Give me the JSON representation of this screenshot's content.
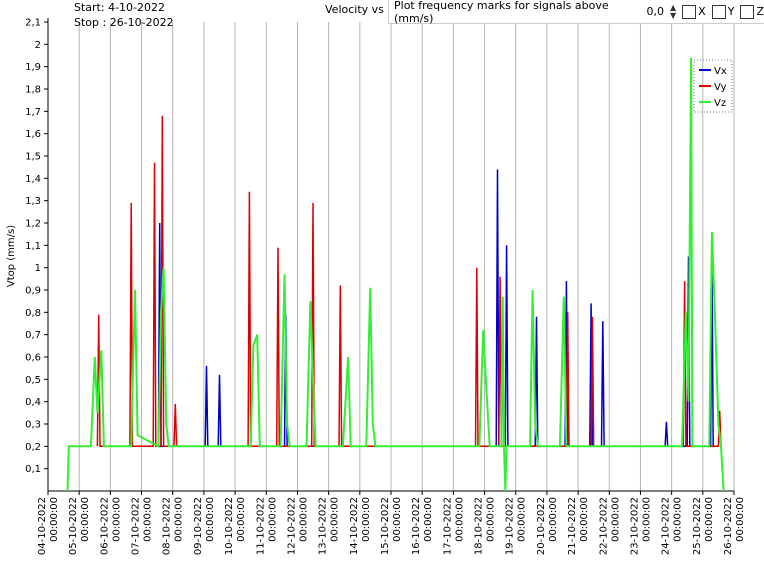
{
  "header": {
    "start": "Start: 4-10-2022",
    "stop": "Stop : 26-10-2022"
  },
  "controls": {
    "label": "Plot frequency marks for signals above (mm/s)",
    "value": "0,0",
    "checkboxes": [
      "X",
      "Y",
      "Z"
    ]
  },
  "chart_data": {
    "type": "line",
    "title": "Velocity vs",
    "y_label": "Vtop (mm/s)",
    "grid": "x",
    "legend": "top-right",
    "xlim": [
      "04-10-2022 00:00:00",
      "26-10-2022 00:00:00"
    ],
    "xticks": [
      "04-10-2022 00:00:00",
      "05-10-2022 00:00:00",
      "06-10-2022 00:00:00",
      "07-10-2022 00:00:00",
      "08-10-2022 00:00:00",
      "09-10-2022 00:00:00",
      "10-10-2022 00:00:00",
      "11-10-2022 00:00:00",
      "12-10-2022 00:00:00",
      "13-10-2022 00:00:00",
      "14-10-2022 00:00:00",
      "15-10-2022 00:00:00",
      "16-10-2022 00:00:00",
      "17-10-2022 00:00:00",
      "18-10-2022 00:00:00",
      "19-10-2022 00:00:00",
      "20-10-2022 00:00:00",
      "21-10-2022 00:00:00",
      "22-10-2022 00:00:00",
      "23-10-2022 00:00:00",
      "24-10-2022 00:00:00",
      "25-10-2022 00:00:00",
      "26-10-2022 00:00:00"
    ],
    "ylim": [
      0,
      2.1
    ],
    "yticks": [
      {
        "value": 0.1,
        "label": "0,1"
      },
      {
        "value": 0.2,
        "label": "0,2"
      },
      {
        "value": 0.3,
        "label": "0,3"
      },
      {
        "value": 0.4,
        "label": "0,4"
      },
      {
        "value": 0.5,
        "label": "0,5"
      },
      {
        "value": 0.6,
        "label": "0,6"
      },
      {
        "value": 0.7,
        "label": "0,7"
      },
      {
        "value": 0.8,
        "label": "0,8"
      },
      {
        "value": 0.9,
        "label": "0,9"
      },
      {
        "value": 1,
        "label": "1"
      },
      {
        "value": 1.1,
        "label": "1,1"
      },
      {
        "value": 1.2,
        "label": "1,2"
      },
      {
        "value": 1.3,
        "label": "1,3"
      },
      {
        "value": 1.4,
        "label": "1,4"
      },
      {
        "value": 1.5,
        "label": "1,5"
      },
      {
        "value": 1.6,
        "label": "1,6"
      },
      {
        "value": 1.7,
        "label": "1,7"
      },
      {
        "value": 1.8,
        "label": "1,8"
      },
      {
        "value": 1.9,
        "label": "1,9"
      },
      {
        "value": 2,
        "label": "2"
      },
      {
        "value": 2.1,
        "label": "2,1"
      }
    ],
    "series": [
      {
        "name": "Vx",
        "color": "#0000cc",
        "x": [
          "07-10-2022 13:00:00",
          "07-10-2022 14:00:00",
          "07-10-2022 15:00:00",
          "09-10-2022 01:00:00",
          "09-10-2022 02:00:00",
          "09-10-2022 03:00:00",
          "09-10-2022 11:00:00",
          "09-10-2022 12:00:00",
          "09-10-2022 13:00:00",
          "11-10-2022 14:00:00",
          "11-10-2022 15:00:00",
          "11-10-2022 16:00:00",
          "18-10-2022 09:00:00",
          "18-10-2022 10:00:00",
          "18-10-2022 11:00:00",
          "18-10-2022 16:00:00",
          "18-10-2022 17:00:00",
          "18-10-2022 18:00:00",
          "19-10-2022 15:00:00",
          "19-10-2022 16:00:00",
          "19-10-2022 17:00:00",
          "20-10-2022 14:00:00",
          "20-10-2022 15:00:00",
          "20-10-2022 16:00:00",
          "21-10-2022 09:00:00",
          "21-10-2022 10:00:00",
          "21-10-2022 11:00:00",
          "21-10-2022 18:00:00",
          "21-10-2022 19:00:00",
          "21-10-2022 20:00:00",
          "23-10-2022 19:00:00",
          "23-10-2022 20:00:00",
          "23-10-2022 21:00:00",
          "24-10-2022 12:00:00",
          "24-10-2022 13:00:00",
          "24-10-2022 14:00:00",
          "25-10-2022 06:00:00",
          "25-10-2022 07:00:00",
          "25-10-2022 08:00:00"
        ],
        "values": [
          0.2,
          1.2,
          0.2,
          0.2,
          0.56,
          0.2,
          0.2,
          0.52,
          0.2,
          0.2,
          0.79,
          0.2,
          0.2,
          1.44,
          0.2,
          0.2,
          1.1,
          0.2,
          0.2,
          0.78,
          0.2,
          0.2,
          0.94,
          0.2,
          0.2,
          0.84,
          0.2,
          0.2,
          0.76,
          0.2,
          0.2,
          0.31,
          0.2,
          0.2,
          1.05,
          0.2,
          0.2,
          1.09,
          0.2
        ]
      },
      {
        "name": "Vy",
        "color": "#dd0000",
        "x": [
          "05-10-2022 14:00:00",
          "05-10-2022 15:00:00",
          "05-10-2022 16:00:00",
          "06-10-2022 15:00:00",
          "06-10-2022 16:00:00",
          "06-10-2022 17:00:00",
          "07-10-2022 09:00:00",
          "07-10-2022 10:00:00",
          "07-10-2022 11:00:00",
          "07-10-2022 15:00:00",
          "07-10-2022 16:00:00",
          "07-10-2022 17:00:00",
          "08-10-2022 01:00:00",
          "08-10-2022 02:00:00",
          "08-10-2022 03:00:00",
          "10-10-2022 10:00:00",
          "10-10-2022 11:00:00",
          "10-10-2022 12:00:00",
          "11-10-2022 08:00:00",
          "11-10-2022 09:00:00",
          "11-10-2022 10:00:00",
          "12-10-2022 11:00:00",
          "12-10-2022 12:00:00",
          "12-10-2022 13:00:00",
          "13-10-2022 08:00:00",
          "13-10-2022 09:00:00",
          "13-10-2022 10:00:00",
          "17-10-2022 17:00:00",
          "17-10-2022 18:00:00",
          "17-10-2022 19:00:00",
          "18-10-2022 11:00:00",
          "18-10-2022 12:00:00",
          "18-10-2022 13:00:00",
          "20-10-2022 15:00:00",
          "20-10-2022 16:00:00",
          "20-10-2022 17:00:00",
          "21-10-2022 10:00:00",
          "21-10-2022 11:00:00",
          "21-10-2022 12:00:00",
          "24-10-2022 09:00:00",
          "24-10-2022 10:00:00",
          "24-10-2022 11:00:00",
          "25-10-2022 12:00:00",
          "25-10-2022 13:00:00",
          "25-10-2022 14:00:00"
        ],
        "values": [
          0.2,
          0.79,
          0.2,
          0.2,
          1.29,
          0.2,
          0.2,
          1.47,
          0.2,
          0.2,
          1.68,
          0.2,
          0.2,
          0.39,
          0.2,
          0.2,
          1.34,
          0.2,
          0.2,
          1.09,
          0.2,
          0.2,
          1.29,
          0.2,
          0.2,
          0.92,
          0.2,
          0.2,
          1,
          0.2,
          0.2,
          0.96,
          0.2,
          0.2,
          0.8,
          0.2,
          0.2,
          0.78,
          0.2,
          0.2,
          0.94,
          0.2,
          0.2,
          0.36,
          0.2
        ]
      },
      {
        "name": "Vz",
        "color": "#33ee33",
        "x": [
          "04-10-2022 15:00:00",
          "04-10-2022 16:00:00",
          "05-10-2022 09:00:00",
          "05-10-2022 12:00:00",
          "05-10-2022 14:00:00",
          "05-10-2022 17:00:00",
          "05-10-2022 19:00:00",
          "06-10-2022 16:00:00",
          "06-10-2022 19:00:00",
          "06-10-2022 21:00:00",
          "07-10-2022 13:00:00",
          "07-10-2022 15:00:00",
          "07-10-2022 17:00:00",
          "07-10-2022 19:00:00",
          "07-10-2022 21:00:00",
          "10-10-2022 12:00:00",
          "10-10-2022 14:00:00",
          "10-10-2022 17:00:00",
          "10-10-2022 19:00:00",
          "11-10-2022 11:00:00",
          "11-10-2022 14:00:00",
          "11-10-2022 16:00:00",
          "11-10-2022 18:00:00",
          "12-10-2022 07:00:00",
          "12-10-2022 10:00:00",
          "12-10-2022 12:00:00",
          "12-10-2022 14:00:00",
          "13-10-2022 11:00:00",
          "13-10-2022 15:00:00",
          "13-10-2022 17:00:00",
          "14-10-2022 05:00:00",
          "14-10-2022 08:00:00",
          "14-10-2022 10:00:00",
          "14-10-2022 12:00:00",
          "17-10-2022 20:00:00",
          "17-10-2022 23:00:00",
          "18-10-2022 02:00:00",
          "18-10-2022 04:00:00",
          "18-10-2022 13:00:00",
          "18-10-2022 14:00:00",
          "18-10-2022 15:00:00",
          "18-10-2022 16:00:00",
          "18-10-2022 17:00:00",
          "19-10-2022 11:00:00",
          "19-10-2022 13:00:00",
          "19-10-2022 15:00:00",
          "19-10-2022 17:00:00",
          "20-10-2022 10:00:00",
          "20-10-2022 13:00:00",
          "20-10-2022 15:00:00",
          "24-10-2022 08:00:00",
          "24-10-2022 11:00:00",
          "24-10-2022 13:00:00",
          "24-10-2022 15:00:00",
          "24-10-2022 16:00:00",
          "25-10-2022 05:00:00",
          "25-10-2022 07:00:00",
          "25-10-2022 09:00:00",
          "25-10-2022 12:00:00",
          "25-10-2022 14:00:00",
          "25-10-2022 16:00:00"
        ],
        "values": [
          0,
          0.2,
          0.2,
          0.6,
          0.35,
          0.63,
          0.2,
          0.2,
          0.9,
          0.25,
          0.2,
          0.8,
          1,
          0.3,
          0.2,
          0.2,
          0.65,
          0.7,
          0.2,
          0.2,
          0.97,
          0.3,
          0.2,
          0.2,
          0.85,
          0.5,
          0.2,
          0.2,
          0.6,
          0.2,
          0.2,
          0.91,
          0.3,
          0.2,
          0.2,
          0.72,
          0.4,
          0.2,
          0.2,
          0.87,
          0.2,
          0,
          0.2,
          0.2,
          0.9,
          0.3,
          0.2,
          0.2,
          0.87,
          0.2,
          0.2,
          0.8,
          0.4,
          1.94,
          0.2,
          0.2,
          1.16,
          0.85,
          0.3,
          0.2,
          0
        ]
      }
    ]
  }
}
